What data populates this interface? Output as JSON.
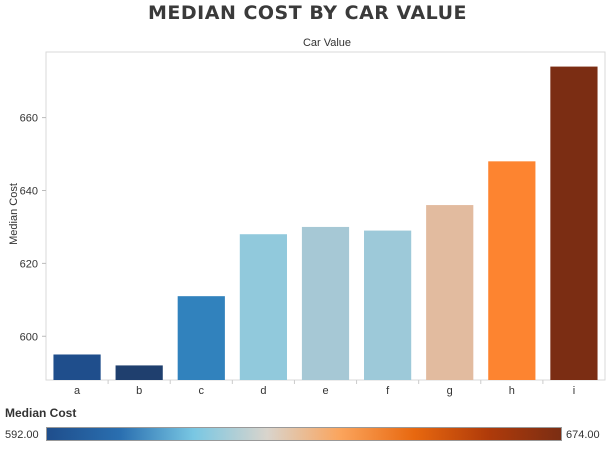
{
  "chart_data": {
    "type": "bar",
    "title": "MEDIAN COST BY CAR VALUE",
    "subtitle": "Car Value",
    "xlabel": "",
    "ylabel": "Median Cost",
    "categories": [
      "a",
      "b",
      "c",
      "d",
      "e",
      "f",
      "g",
      "h",
      "i"
    ],
    "values": [
      595,
      592,
      611,
      628,
      630,
      629,
      636,
      648,
      674
    ],
    "colors": [
      "#1f4e8c",
      "#1f3f6e",
      "#3182bd",
      "#91c9dc",
      "#a6c8d5",
      "#9dc9d9",
      "#e2bb9f",
      "#fd8430",
      "#7b2d13"
    ],
    "ylim": [
      588,
      678
    ],
    "yticks": [
      600,
      620,
      640,
      660
    ],
    "grid": false,
    "legend": {
      "title": "Median Cost",
      "min_label": "592.00",
      "max_label": "674.00",
      "placement": "bottom",
      "gradient": [
        "#1f4e8c",
        "#2a6fb0",
        "#79c7e3",
        "#d9d4cc",
        "#fba45c",
        "#e8680f",
        "#b03b0a",
        "#7b2d13"
      ]
    }
  }
}
